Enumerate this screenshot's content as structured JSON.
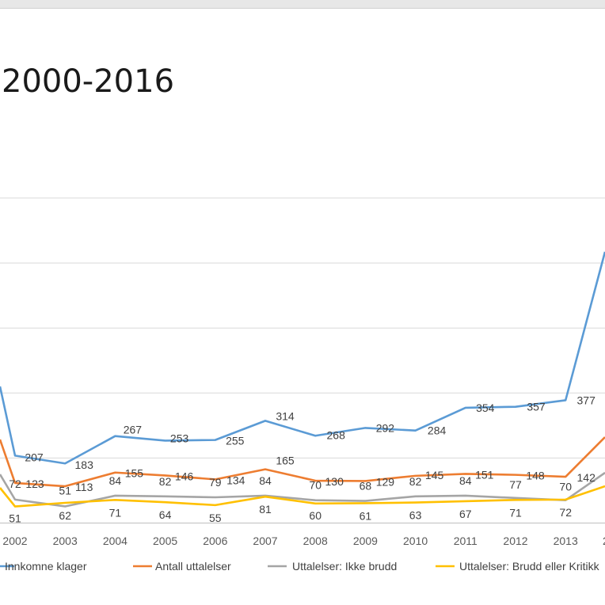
{
  "title": "2000-2016",
  "chart_data": {
    "type": "line",
    "title": "2000-2016",
    "x": [
      "2002",
      "2003",
      "2004",
      "2005",
      "2006",
      "2007",
      "2008",
      "2009",
      "2010",
      "2011",
      "2012",
      "2013"
    ],
    "ylim": [
      0,
      450
    ],
    "grid": true,
    "legend_position": "bottom",
    "series": [
      {
        "name": "Innkomne klager",
        "color": "#5b9bd5",
        "values": [
          207,
          183,
          267,
          253,
          255,
          314,
          268,
          292,
          284,
          354,
          357,
          377
        ],
        "labels": [
          "207",
          "183",
          "267",
          "253",
          "255",
          "314",
          "268",
          "292",
          "284",
          "354",
          "357",
          "377"
        ]
      },
      {
        "name": "Antall uttalelser",
        "color": "#ed7d31",
        "values": [
          123,
          113,
          155,
          146,
          134,
          165,
          130,
          129,
          145,
          151,
          148,
          142
        ],
        "labels": [
          "123",
          "113",
          "155",
          "146",
          "134",
          "165",
          "130",
          "129",
          "145",
          "151",
          "148",
          "142"
        ]
      },
      {
        "name": "Uttalelser: Ikke brudd",
        "color": "#a5a5a5",
        "values": [
          72,
          51,
          84,
          82,
          79,
          84,
          70,
          68,
          82,
          84,
          77,
          70
        ],
        "labels": [
          "72",
          "51",
          "84",
          "82",
          "79",
          "84",
          "70",
          "68",
          "82",
          "84",
          "77",
          "70"
        ]
      },
      {
        "name": "Uttalelser: Brudd eller Kritikk",
        "color": "#ffc000",
        "values": [
          51,
          62,
          71,
          64,
          55,
          81,
          60,
          61,
          63,
          67,
          71,
          72
        ],
        "labels": [
          "51",
          "62",
          "71",
          "64",
          "55",
          "81",
          "60",
          "61",
          "63",
          "67",
          "71",
          "72"
        ]
      }
    ]
  }
}
